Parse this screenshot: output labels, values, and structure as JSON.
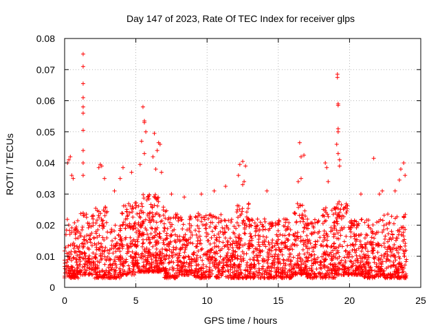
{
  "chart_data": {
    "type": "scatter",
    "title": "Day 147 of 2023, Rate Of TEC Index for receiver glps",
    "xlabel": "GPS time / hours",
    "ylabel": "ROTI / TECUs",
    "xlim": [
      0,
      25
    ],
    "ylim": [
      0,
      0.08
    ],
    "xticks": [
      0,
      5,
      10,
      15,
      20,
      25
    ],
    "xtick_labels": [
      "0",
      "5",
      "10",
      "15",
      "20",
      "25"
    ],
    "yticks": [
      0,
      0.01,
      0.02,
      0.03,
      0.04,
      0.05,
      0.06,
      0.07,
      0.08
    ],
    "ytick_labels": [
      "0",
      "0.01",
      "0.02",
      "0.03",
      "0.04",
      "0.05",
      "0.06",
      "0.07",
      "0.08"
    ],
    "grid": true,
    "marker": "+",
    "color": "#ff0000",
    "series": [
      {
        "name": "ROTI",
        "points": [
          [
            1.3,
            0.075
          ],
          [
            1.3,
            0.071
          ],
          [
            1.3,
            0.0655
          ],
          [
            1.3,
            0.061
          ],
          [
            1.3,
            0.058
          ],
          [
            1.3,
            0.056
          ],
          [
            1.3,
            0.0505
          ],
          [
            1.3,
            0.044
          ],
          [
            1.3,
            0.04
          ],
          [
            1.3,
            0.036
          ],
          [
            19.15,
            0.0685
          ],
          [
            19.15,
            0.0675
          ],
          [
            19.2,
            0.059
          ],
          [
            19.2,
            0.0585
          ],
          [
            19.2,
            0.051
          ],
          [
            19.2,
            0.05
          ],
          [
            19.1,
            0.046
          ],
          [
            19.2,
            0.043
          ],
          [
            19.3,
            0.041
          ],
          [
            19.3,
            0.039
          ],
          [
            5.5,
            0.058
          ],
          [
            5.6,
            0.0535
          ],
          [
            5.6,
            0.053
          ],
          [
            5.7,
            0.05
          ],
          [
            5.4,
            0.047
          ],
          [
            5.6,
            0.043
          ],
          [
            5.3,
            0.0395
          ],
          [
            6.3,
            0.0495
          ],
          [
            6.6,
            0.0465
          ],
          [
            6.7,
            0.046
          ],
          [
            6.5,
            0.044
          ],
          [
            6.2,
            0.042
          ],
          [
            6.4,
            0.038
          ],
          [
            6.8,
            0.037
          ],
          [
            0.4,
            0.042
          ],
          [
            0.3,
            0.041
          ],
          [
            0.2,
            0.04
          ],
          [
            0.5,
            0.036
          ],
          [
            0.6,
            0.035
          ],
          [
            2.5,
            0.0395
          ],
          [
            2.6,
            0.039
          ],
          [
            2.4,
            0.0385
          ],
          [
            2.8,
            0.035
          ],
          [
            4.1,
            0.0385
          ],
          [
            4.7,
            0.037
          ],
          [
            3.9,
            0.035
          ],
          [
            12.5,
            0.0405
          ],
          [
            12.7,
            0.039
          ],
          [
            12.3,
            0.0395
          ],
          [
            12.2,
            0.036
          ],
          [
            12.6,
            0.034
          ],
          [
            12.5,
            0.033
          ],
          [
            16.5,
            0.0465
          ],
          [
            16.6,
            0.042
          ],
          [
            16.8,
            0.0425
          ],
          [
            16.6,
            0.035
          ],
          [
            16.4,
            0.034
          ],
          [
            18.3,
            0.04
          ],
          [
            18.4,
            0.0385
          ],
          [
            18.5,
            0.034
          ],
          [
            21.7,
            0.0415
          ],
          [
            22.3,
            0.031
          ],
          [
            22.1,
            0.03
          ],
          [
            23.6,
            0.038
          ],
          [
            23.8,
            0.04
          ],
          [
            23.9,
            0.036
          ],
          [
            23.5,
            0.0345
          ],
          [
            23.2,
            0.031
          ],
          [
            11.3,
            0.0325
          ],
          [
            10.5,
            0.031
          ],
          [
            14.2,
            0.031
          ],
          [
            9.6,
            0.03
          ],
          [
            7.5,
            0.03
          ],
          [
            8.4,
            0.029
          ],
          [
            3.5,
            0.031
          ],
          [
            20.8,
            0.03
          ]
        ],
        "bands": [
          {
            "x": [
              0,
              1
            ],
            "low": 0.003,
            "high": 0.022,
            "n": 120
          },
          {
            "x": [
              1,
              2
            ],
            "low": 0.004,
            "high": 0.024,
            "n": 110
          },
          {
            "x": [
              2,
              3
            ],
            "low": 0.003,
            "high": 0.026,
            "n": 120
          },
          {
            "x": [
              3,
              4
            ],
            "low": 0.003,
            "high": 0.02,
            "n": 110
          },
          {
            "x": [
              4,
              5
            ],
            "low": 0.004,
            "high": 0.028,
            "n": 120
          },
          {
            "x": [
              5,
              6
            ],
            "low": 0.005,
            "high": 0.03,
            "n": 140
          },
          {
            "x": [
              6,
              7
            ],
            "low": 0.005,
            "high": 0.03,
            "n": 140
          },
          {
            "x": [
              7,
              8
            ],
            "low": 0.003,
            "high": 0.025,
            "n": 120
          },
          {
            "x": [
              8,
              9
            ],
            "low": 0.004,
            "high": 0.024,
            "n": 110
          },
          {
            "x": [
              9,
              10
            ],
            "low": 0.003,
            "high": 0.024,
            "n": 110
          },
          {
            "x": [
              10,
              11
            ],
            "low": 0.003,
            "high": 0.025,
            "n": 110
          },
          {
            "x": [
              11,
              12
            ],
            "low": 0.003,
            "high": 0.022,
            "n": 110
          },
          {
            "x": [
              12,
              13
            ],
            "low": 0.003,
            "high": 0.027,
            "n": 120
          },
          {
            "x": [
              13,
              14
            ],
            "low": 0.003,
            "high": 0.022,
            "n": 110
          },
          {
            "x": [
              14,
              15
            ],
            "low": 0.003,
            "high": 0.022,
            "n": 110
          },
          {
            "x": [
              15,
              16
            ],
            "low": 0.003,
            "high": 0.022,
            "n": 110
          },
          {
            "x": [
              16,
              17
            ],
            "low": 0.004,
            "high": 0.027,
            "n": 120
          },
          {
            "x": [
              17,
              18
            ],
            "low": 0.003,
            "high": 0.022,
            "n": 110
          },
          {
            "x": [
              18,
              19
            ],
            "low": 0.003,
            "high": 0.026,
            "n": 120
          },
          {
            "x": [
              19,
              20
            ],
            "low": 0.004,
            "high": 0.028,
            "n": 120
          },
          {
            "x": [
              20,
              21
            ],
            "low": 0.004,
            "high": 0.022,
            "n": 120
          },
          {
            "x": [
              21,
              22
            ],
            "low": 0.003,
            "high": 0.022,
            "n": 110
          },
          {
            "x": [
              22,
              23
            ],
            "low": 0.003,
            "high": 0.024,
            "n": 110
          },
          {
            "x": [
              23,
              24
            ],
            "low": 0.003,
            "high": 0.024,
            "n": 120
          }
        ]
      }
    ]
  }
}
